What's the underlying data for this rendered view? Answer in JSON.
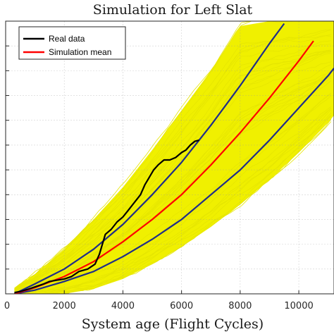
{
  "chart_data": {
    "type": "line",
    "title": "Simulation for Left Slat",
    "xlabel": "System age (Flight Cycles)",
    "ylabel": "",
    "xlim": [
      0,
      11200
    ],
    "ylim": [
      0,
      1.1
    ],
    "xticks": [
      0,
      2000,
      4000,
      6000,
      8000,
      10000
    ],
    "yticks": [
      0.1,
      0.2,
      0.3,
      0.4,
      0.5,
      0.6,
      0.7,
      0.8,
      0.9,
      1.0
    ],
    "grid": true,
    "legend_position": "top-left",
    "series": [
      {
        "name": "Real data",
        "color": "#000000",
        "x": [
          300,
          520,
          800,
          1050,
          1300,
          1500,
          1750,
          2000,
          2250,
          2500,
          2800,
          3050,
          3200,
          3300,
          3400,
          3600,
          3800,
          4000,
          4200,
          4400,
          4600,
          4750,
          4900,
          5050,
          5200,
          5400,
          5600,
          5800,
          6000,
          6150,
          6300,
          6450,
          6600
        ],
        "y": [
          0.005,
          0.01,
          0.02,
          0.03,
          0.04,
          0.05,
          0.055,
          0.06,
          0.07,
          0.09,
          0.1,
          0.12,
          0.16,
          0.2,
          0.24,
          0.26,
          0.29,
          0.31,
          0.34,
          0.37,
          0.4,
          0.44,
          0.47,
          0.5,
          0.52,
          0.54,
          0.54,
          0.55,
          0.57,
          0.58,
          0.6,
          0.615,
          0.62
        ]
      },
      {
        "name": "Simulation mean",
        "color": "#ff0000",
        "x": [
          300,
          1000,
          2000,
          3000,
          4000,
          5000,
          6000,
          7000,
          8000,
          9000,
          10000,
          10500
        ],
        "y": [
          0.0,
          0.025,
          0.07,
          0.13,
          0.21,
          0.3,
          0.4,
          0.52,
          0.65,
          0.79,
          0.94,
          1.02
        ]
      },
      {
        "color": "#1f2d8a",
        "x": [
          300,
          1000,
          2000,
          3000,
          4000,
          5000,
          6000,
          7000,
          8000,
          9000,
          9500
        ],
        "y": [
          0.0,
          0.04,
          0.1,
          0.18,
          0.28,
          0.4,
          0.53,
          0.68,
          0.84,
          1.01,
          1.09
        ]
      },
      {
        "color": "#1f2d8a",
        "x": [
          300,
          1000,
          2000,
          3000,
          4000,
          5000,
          6000,
          7000,
          8000,
          9000,
          10000,
          11000,
          11200
        ],
        "y": [
          0.0,
          0.015,
          0.05,
          0.09,
          0.15,
          0.22,
          0.3,
          0.4,
          0.5,
          0.62,
          0.75,
          0.88,
          0.91
        ]
      }
    ],
    "simulation_band": {
      "color": "#f0f000",
      "x": [
        300,
        1000,
        2000,
        3000,
        4000,
        5000,
        6000,
        7000,
        8000,
        9000,
        10000,
        11000,
        11200
      ],
      "upper": [
        0.02,
        0.08,
        0.18,
        0.3,
        0.43,
        0.58,
        0.74,
        0.9,
        1.08,
        1.1,
        1.1,
        1.1,
        1.1
      ],
      "lower": [
        0.0,
        0.0,
        0.0,
        0.02,
        0.06,
        0.12,
        0.19,
        0.27,
        0.36,
        0.46,
        0.57,
        0.69,
        0.72
      ]
    }
  }
}
